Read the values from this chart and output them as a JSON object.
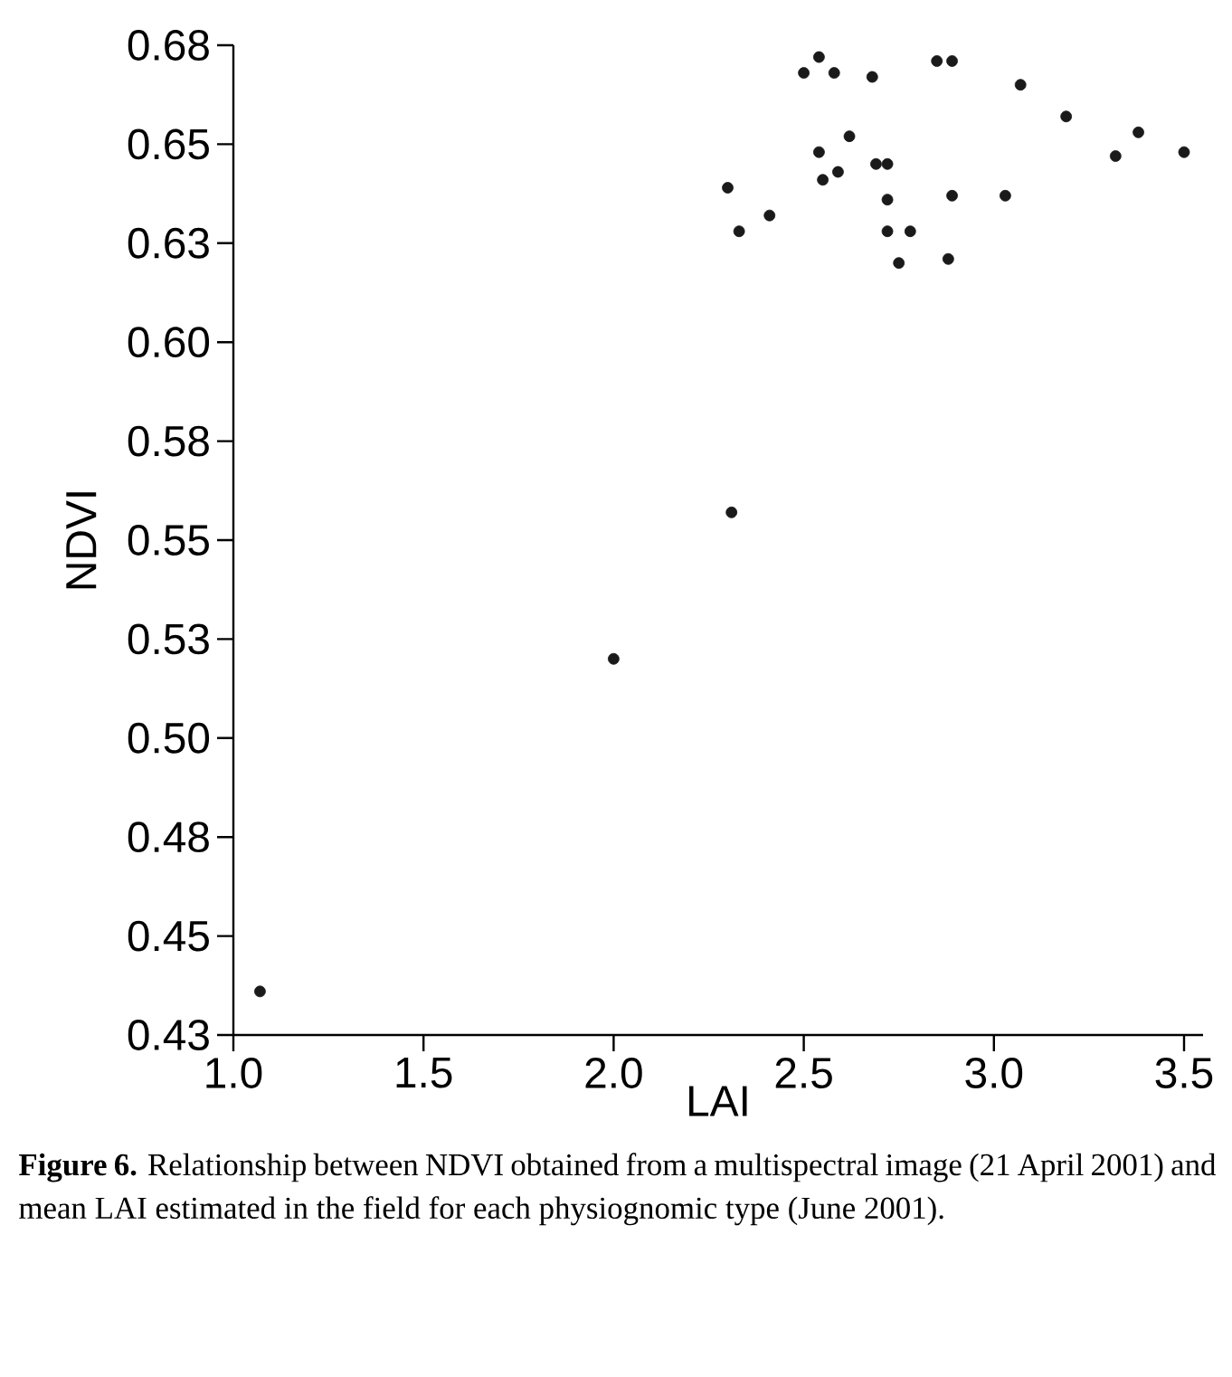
{
  "chart_data": {
    "type": "scatter",
    "xlabel": "LAI",
    "ylabel": "NDVI",
    "annotations": [
      "**Figure 6.** Relationship between NDVI obtained from a multispectral image (21 April 2001) and mean LAI estimated in the field for each physiognomic type (June 2001)."
    ],
    "xlim": [
      1.0,
      3.55
    ],
    "ylim": [
      0.425,
      0.675
    ],
    "xticks": [
      {
        "value": 1.0,
        "label": "1.0"
      },
      {
        "value": 1.5,
        "label": "1.5"
      },
      {
        "value": 2.0,
        "label": "2.0"
      },
      {
        "value": 2.5,
        "label": "2.5"
      },
      {
        "value": 3.0,
        "label": "3.0"
      },
      {
        "value": 3.5,
        "label": "3.5"
      }
    ],
    "yticks": [
      {
        "value": 0.425,
        "label": "0.43"
      },
      {
        "value": 0.45,
        "label": "0.45"
      },
      {
        "value": 0.475,
        "label": "0.48"
      },
      {
        "value": 0.5,
        "label": "0.50"
      },
      {
        "value": 0.525,
        "label": "0.53"
      },
      {
        "value": 0.55,
        "label": "0.55"
      },
      {
        "value": 0.575,
        "label": "0.58"
      },
      {
        "value": 0.6,
        "label": "0.60"
      },
      {
        "value": 0.625,
        "label": "0.63"
      },
      {
        "value": 0.65,
        "label": "0.65"
      },
      {
        "value": 0.675,
        "label": "0.68"
      }
    ],
    "marker": "circle",
    "series": [
      {
        "color": "#1a1a1a",
        "x": [
          1.07,
          2.0,
          2.31,
          2.3,
          2.33,
          2.41,
          2.5,
          2.54,
          2.54,
          2.55,
          2.58,
          2.59,
          2.62,
          2.68,
          2.69,
          2.72,
          2.72,
          2.72,
          2.78,
          2.75,
          2.85,
          2.89,
          2.88,
          2.89,
          3.03,
          3.07,
          3.19,
          3.32,
          3.38,
          3.5
        ],
        "values": [
          0.436,
          0.52,
          0.557,
          0.639,
          0.628,
          0.632,
          0.668,
          0.672,
          0.648,
          0.641,
          0.668,
          0.643,
          0.652,
          0.667,
          0.645,
          0.645,
          0.636,
          0.628,
          0.628,
          0.62,
          0.671,
          0.671,
          0.621,
          0.637,
          0.637,
          0.665,
          0.657,
          0.647,
          0.653,
          0.648
        ]
      }
    ]
  }
}
